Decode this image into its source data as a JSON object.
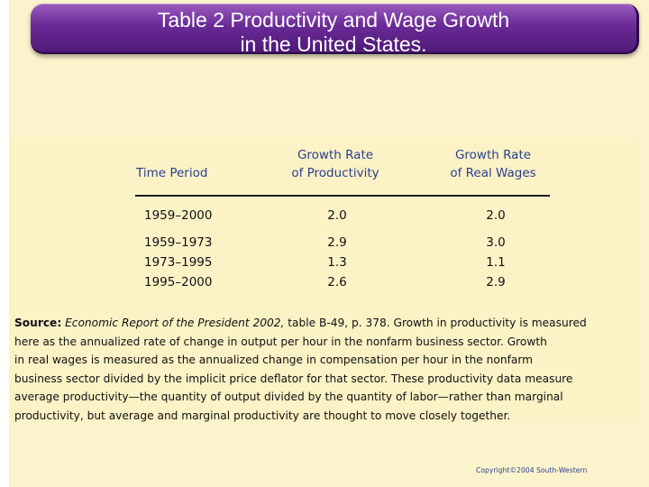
{
  "title": {
    "line1": "Table 2 Productivity and Wage Growth",
    "line2": "in the United States."
  },
  "table": {
    "headers": {
      "time_period": "Time Period",
      "productivity_l1": "Growth Rate",
      "productivity_l2": "of Productivity",
      "wages_l1": "Growth Rate",
      "wages_l2": "of Real Wages"
    },
    "rows": [
      {
        "period": "1959–2000",
        "productivity": "2.0",
        "wages": "2.0"
      },
      {
        "period": "1959–1973",
        "productivity": "2.9",
        "wages": "3.0"
      },
      {
        "period": "1973–1995",
        "productivity": "1.3",
        "wages": "1.1"
      },
      {
        "period": "1995–2000",
        "productivity": "2.6",
        "wages": "2.9"
      }
    ]
  },
  "source": {
    "label": "Source:",
    "publication": "Economic Report of the President 2002,",
    "text_l1": " table B-49, p. 378. Growth in productivity is measured",
    "text_l2": "here as the annualized rate of change in output per hour in the nonfarm business sector. Growth",
    "text_l3": "in real wages is measured as the annualized change in compensation per hour in the nonfarm",
    "text_l4": "business sector divided by the implicit price deflator for that sector. These productivity data measure",
    "text_l5": "average productivity—the quantity of output divided by the quantity of labor—rather than marginal",
    "text_l6": "productivity, but average and marginal productivity are thought to move closely together."
  },
  "footer": {
    "copyright": "Copyright©2004  South-Western"
  },
  "colors": {
    "title_bar": "#6a2a96",
    "header_text": "#2a3f8f",
    "background": "#fbf3cc"
  }
}
